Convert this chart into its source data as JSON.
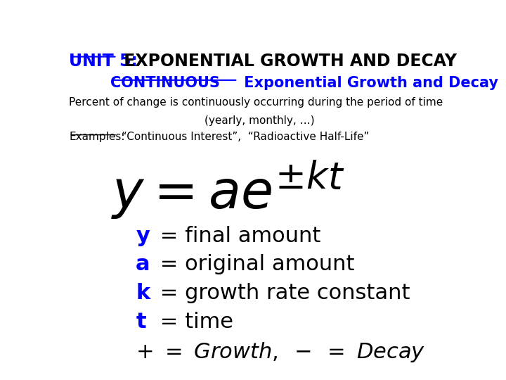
{
  "bg_color": "#ffffff",
  "title_unit": "UNIT 5:",
  "title_rest": " EXPONENTIAL GROWTH AND DECAY",
  "subtitle_continuous": "CONTINUOUS",
  "subtitle_rest": " Exponential Growth and Decay",
  "line1": "Percent of change is continuously occurring during the period of time",
  "line2": "(yearly, monthly, …)",
  "examples_label": "Examples:",
  "examples_rest": " “Continuous Interest”,  “Radioactive Half-Life”",
  "blue_color": "#0000FF",
  "black_color": "#000000",
  "var_y": "y",
  "var_a": "a",
  "var_k": "k",
  "var_t": "t",
  "def_y": " = final amount",
  "def_a": " = original amount",
  "def_k": " = growth rate constant",
  "def_t": " = time"
}
